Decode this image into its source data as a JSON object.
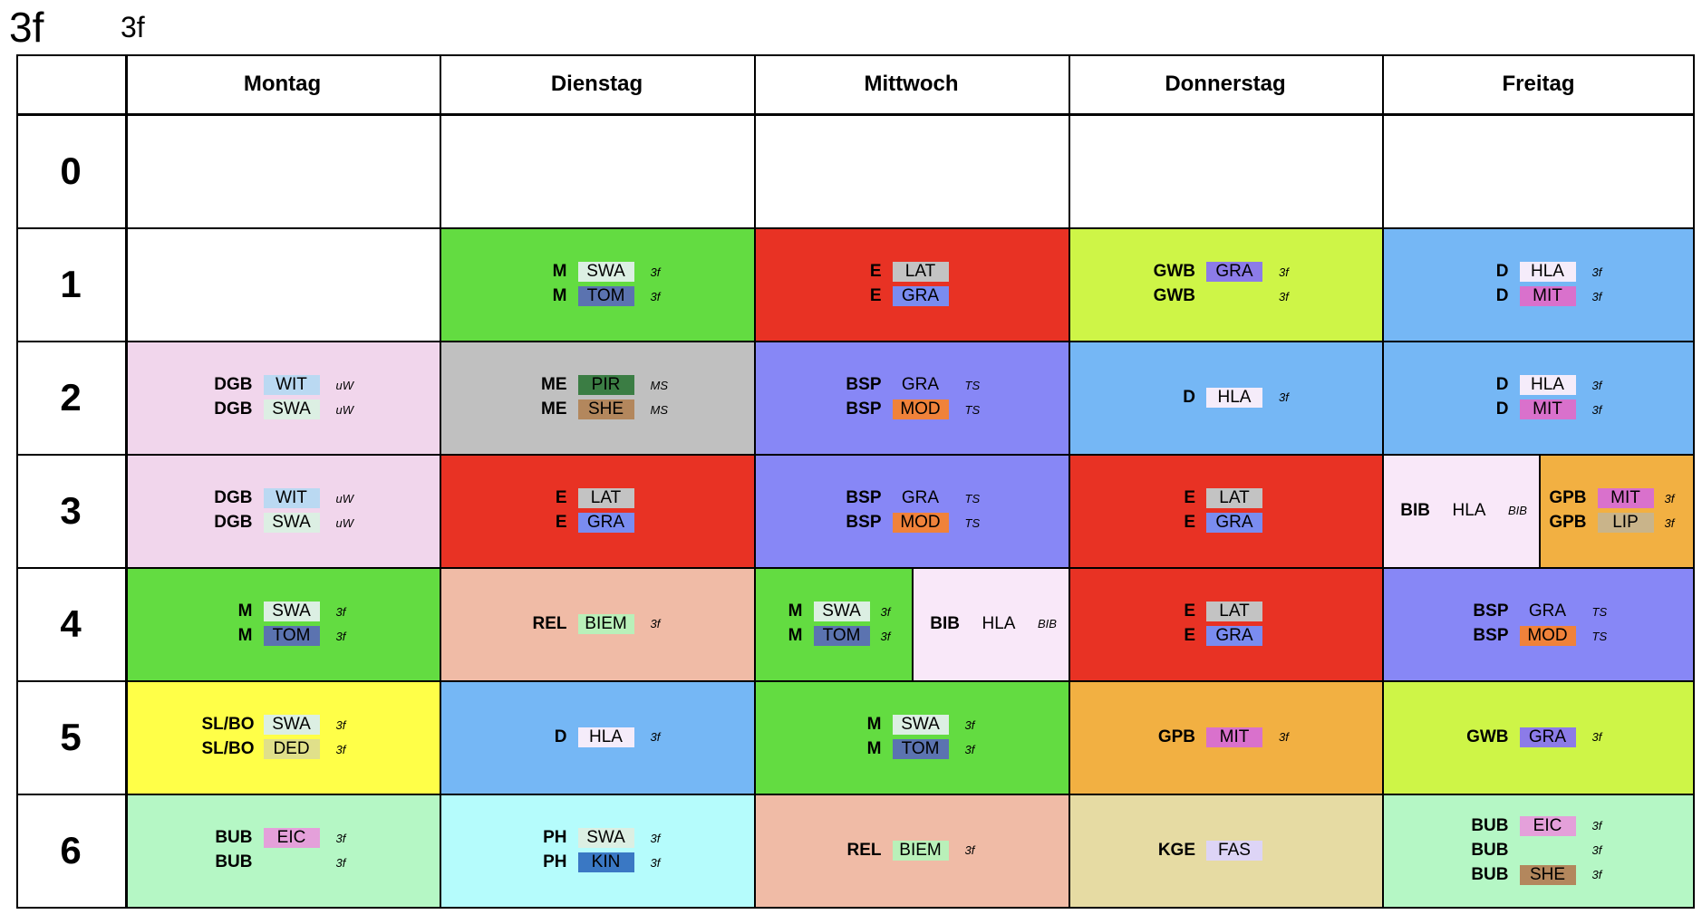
{
  "header": {
    "class_name": "3f",
    "class_label": "3f"
  },
  "days": [
    "Montag",
    "Dienstag",
    "Mittwoch",
    "Donnerstag",
    "Freitag"
  ],
  "periods": [
    "0",
    "1",
    "2",
    "3",
    "4",
    "5",
    "6"
  ],
  "colors": {
    "SWA": "#dcefe3",
    "TOM": "#5b73b0",
    "LAT": "#c3c3c3",
    "GRA_purple": "#8c7be8",
    "GRA_blue": "#7a8cf0",
    "HLA": "#f5ecfa",
    "MIT": "#d971cc",
    "WIT": "#bad9f2",
    "PIR": "#3b7d44",
    "SHE": "#b3875d",
    "MOD": "#f0823a",
    "BIEM": "#b9f0b9",
    "LIP": "#c9b48a",
    "DED": "#e0e08a",
    "EIC": "#e4a0da",
    "KIN": "#3a78c4",
    "FAS": "#ddd4f6",
    "green": "#63dc41",
    "red": "#e83224",
    "lime": "#cef547",
    "sky": "#75b7f5",
    "pink": "#f1d6ec",
    "grey": "#c0c0c0",
    "periwinkle": "#8787f6",
    "lightpink": "#f9e8f9",
    "orange": "#f2b042",
    "salmon": "#f0bba6",
    "yellow": "#ffff48",
    "mint": "#b5f7c5",
    "cyan": "#b5fcfc",
    "khaki": "#e6dba3"
  },
  "lessons": [
    {
      "day": "Dienstag",
      "period": "1",
      "bg": "#63dc41",
      "rows": [
        {
          "subject": "M",
          "teacher": "SWA",
          "tbg": "#dcefe3",
          "room": "3f"
        },
        {
          "subject": "M",
          "teacher": "TOM",
          "tbg": "#5b73b0",
          "room": "3f"
        }
      ]
    },
    {
      "day": "Mittwoch",
      "period": "1",
      "bg": "#e83224",
      "rows": [
        {
          "subject": "E",
          "teacher": "LAT",
          "tbg": "#c3c3c3",
          "room": ""
        },
        {
          "subject": "E",
          "teacher": "GRA",
          "tbg": "#7a8cf0",
          "room": ""
        }
      ]
    },
    {
      "day": "Donnerstag",
      "period": "1",
      "bg": "#cef547",
      "rows": [
        {
          "subject": "GWB",
          "teacher": "GRA",
          "tbg": "#8c7be8",
          "room": "3f"
        },
        {
          "subject": "GWB",
          "teacher": "",
          "tbg": "",
          "room": "3f"
        }
      ]
    },
    {
      "day": "Freitag",
      "period": "1",
      "bg": "#75b7f5",
      "rows": [
        {
          "subject": "D",
          "teacher": "HLA",
          "tbg": "#f5ecfa",
          "room": "3f"
        },
        {
          "subject": "D",
          "teacher": "MIT",
          "tbg": "#d971cc",
          "room": "3f"
        }
      ]
    },
    {
      "day": "Montag",
      "period": "2",
      "bg": "#f1d6ec",
      "rows": [
        {
          "subject": "DGB",
          "teacher": "WIT",
          "tbg": "#bad9f2",
          "room": "uW"
        },
        {
          "subject": "DGB",
          "teacher": "SWA",
          "tbg": "#dcefe3",
          "room": "uW"
        }
      ]
    },
    {
      "day": "Dienstag",
      "period": "2",
      "bg": "#c0c0c0",
      "rows": [
        {
          "subject": "ME",
          "teacher": "PIR",
          "tbg": "#3b7d44",
          "room": "MS"
        },
        {
          "subject": "ME",
          "teacher": "SHE",
          "tbg": "#b3875d",
          "room": "MS"
        }
      ]
    },
    {
      "day": "Mittwoch",
      "period": "2",
      "bg": "#8787f6",
      "rows": [
        {
          "subject": "BSP",
          "teacher": "GRA",
          "tbg": "",
          "room": "TS"
        },
        {
          "subject": "BSP",
          "teacher": "MOD",
          "tbg": "#f0823a",
          "room": "TS"
        }
      ]
    },
    {
      "day": "Donnerstag",
      "period": "2",
      "bg": "#75b7f5",
      "rows": [
        {
          "subject": "D",
          "teacher": "HLA",
          "tbg": "#f5ecfa",
          "room": "3f"
        }
      ]
    },
    {
      "day": "Freitag",
      "period": "2",
      "bg": "#75b7f5",
      "rows": [
        {
          "subject": "D",
          "teacher": "HLA",
          "tbg": "#f5ecfa",
          "room": "3f"
        },
        {
          "subject": "D",
          "teacher": "MIT",
          "tbg": "#d971cc",
          "room": "3f"
        }
      ]
    },
    {
      "day": "Montag",
      "period": "3",
      "bg": "#f1d6ec",
      "rows": [
        {
          "subject": "DGB",
          "teacher": "WIT",
          "tbg": "#bad9f2",
          "room": "uW"
        },
        {
          "subject": "DGB",
          "teacher": "SWA",
          "tbg": "#dcefe3",
          "room": "uW"
        }
      ]
    },
    {
      "day": "Dienstag",
      "period": "3",
      "bg": "#e83224",
      "rows": [
        {
          "subject": "E",
          "teacher": "LAT",
          "tbg": "#c3c3c3",
          "room": ""
        },
        {
          "subject": "E",
          "teacher": "GRA",
          "tbg": "#7a8cf0",
          "room": ""
        }
      ]
    },
    {
      "day": "Mittwoch",
      "period": "3",
      "bg": "#8787f6",
      "rows": [
        {
          "subject": "BSP",
          "teacher": "GRA",
          "tbg": "",
          "room": "TS"
        },
        {
          "subject": "BSP",
          "teacher": "MOD",
          "tbg": "#f0823a",
          "room": "TS"
        }
      ]
    },
    {
      "day": "Donnerstag",
      "period": "3",
      "bg": "#e83224",
      "rows": [
        {
          "subject": "E",
          "teacher": "LAT",
          "tbg": "#c3c3c3",
          "room": ""
        },
        {
          "subject": "E",
          "teacher": "GRA",
          "tbg": "#7a8cf0",
          "room": ""
        }
      ]
    },
    {
      "day": "Freitag",
      "period": "3",
      "half": "left",
      "bg": "#f9e8f9",
      "rows": [
        {
          "subject": "BIB",
          "teacher": "HLA",
          "tbg": "",
          "room": "BIB"
        }
      ]
    },
    {
      "day": "Freitag",
      "period": "3",
      "half": "right",
      "bg": "#f2b042",
      "rows": [
        {
          "subject": "GPB",
          "teacher": "MIT",
          "tbg": "#d971cc",
          "room": "3f"
        },
        {
          "subject": "GPB",
          "teacher": "LIP",
          "tbg": "#c9b48a",
          "room": "3f"
        }
      ]
    },
    {
      "day": "Montag",
      "period": "4",
      "bg": "#63dc41",
      "rows": [
        {
          "subject": "M",
          "teacher": "SWA",
          "tbg": "#dcefe3",
          "room": "3f"
        },
        {
          "subject": "M",
          "teacher": "TOM",
          "tbg": "#5b73b0",
          "room": "3f"
        }
      ]
    },
    {
      "day": "Dienstag",
      "period": "4",
      "bg": "#f0bba6",
      "rows": [
        {
          "subject": "REL",
          "teacher": "BIEM",
          "tbg": "#b9f0b9",
          "room": "3f"
        }
      ]
    },
    {
      "day": "Mittwoch",
      "period": "4",
      "half": "left",
      "bg": "#63dc41",
      "rows": [
        {
          "subject": "M",
          "teacher": "SWA",
          "tbg": "#dcefe3",
          "room": "3f"
        },
        {
          "subject": "M",
          "teacher": "TOM",
          "tbg": "#5b73b0",
          "room": "3f"
        }
      ]
    },
    {
      "day": "Mittwoch",
      "period": "4",
      "half": "right",
      "bg": "#f9e8f9",
      "rows": [
        {
          "subject": "BIB",
          "teacher": "HLA",
          "tbg": "",
          "room": "BIB"
        }
      ]
    },
    {
      "day": "Donnerstag",
      "period": "4",
      "bg": "#e83224",
      "rows": [
        {
          "subject": "E",
          "teacher": "LAT",
          "tbg": "#c3c3c3",
          "room": ""
        },
        {
          "subject": "E",
          "teacher": "GRA",
          "tbg": "#7a8cf0",
          "room": ""
        }
      ]
    },
    {
      "day": "Freitag",
      "period": "4",
      "bg": "#8787f6",
      "rows": [
        {
          "subject": "BSP",
          "teacher": "GRA",
          "tbg": "",
          "room": "TS"
        },
        {
          "subject": "BSP",
          "teacher": "MOD",
          "tbg": "#f0823a",
          "room": "TS"
        }
      ]
    },
    {
      "day": "Montag",
      "period": "5",
      "bg": "#ffff48",
      "rows": [
        {
          "subject": "SL/BO",
          "teacher": "SWA",
          "tbg": "#dcefe3",
          "room": "3f"
        },
        {
          "subject": "SL/BO",
          "teacher": "DED",
          "tbg": "#e0e08a",
          "room": "3f"
        }
      ]
    },
    {
      "day": "Dienstag",
      "period": "5",
      "bg": "#75b7f5",
      "rows": [
        {
          "subject": "D",
          "teacher": "HLA",
          "tbg": "#f5ecfa",
          "room": "3f"
        }
      ]
    },
    {
      "day": "Mittwoch",
      "period": "5",
      "bg": "#63dc41",
      "rows": [
        {
          "subject": "M",
          "teacher": "SWA",
          "tbg": "#dcefe3",
          "room": "3f"
        },
        {
          "subject": "M",
          "teacher": "TOM",
          "tbg": "#5b73b0",
          "room": "3f"
        }
      ]
    },
    {
      "day": "Donnerstag",
      "period": "5",
      "bg": "#f2b042",
      "rows": [
        {
          "subject": "GPB",
          "teacher": "MIT",
          "tbg": "#d971cc",
          "room": "3f"
        }
      ]
    },
    {
      "day": "Freitag",
      "period": "5",
      "bg": "#cef547",
      "rows": [
        {
          "subject": "GWB",
          "teacher": "GRA",
          "tbg": "#8c7be8",
          "room": "3f"
        }
      ]
    },
    {
      "day": "Montag",
      "period": "6",
      "bg": "#b5f7c5",
      "rows": [
        {
          "subject": "BUB",
          "teacher": "EIC",
          "tbg": "#e4a0da",
          "room": "3f"
        },
        {
          "subject": "BUB",
          "teacher": "",
          "tbg": "",
          "room": "3f"
        }
      ]
    },
    {
      "day": "Dienstag",
      "period": "6",
      "bg": "#b5fcfc",
      "rows": [
        {
          "subject": "PH",
          "teacher": "SWA",
          "tbg": "#dcefe3",
          "room": "3f"
        },
        {
          "subject": "PH",
          "teacher": "KIN",
          "tbg": "#3a78c4",
          "room": "3f"
        }
      ]
    },
    {
      "day": "Mittwoch",
      "period": "6",
      "bg": "#f0bba6",
      "rows": [
        {
          "subject": "REL",
          "teacher": "BIEM",
          "tbg": "#b9f0b9",
          "room": "3f"
        }
      ]
    },
    {
      "day": "Donnerstag",
      "period": "6",
      "bg": "#e6dba3",
      "rows": [
        {
          "subject": "KGE",
          "teacher": "FAS",
          "tbg": "#ddd4f6",
          "room": ""
        }
      ]
    },
    {
      "day": "Freitag",
      "period": "6",
      "bg": "#b5f7c5",
      "rows": [
        {
          "subject": "BUB",
          "teacher": "EIC",
          "tbg": "#e4a0da",
          "room": "3f"
        },
        {
          "subject": "BUB",
          "teacher": "",
          "tbg": "",
          "room": "3f"
        },
        {
          "subject": "BUB",
          "teacher": "SHE",
          "tbg": "#b3875d",
          "room": "3f"
        }
      ]
    }
  ]
}
